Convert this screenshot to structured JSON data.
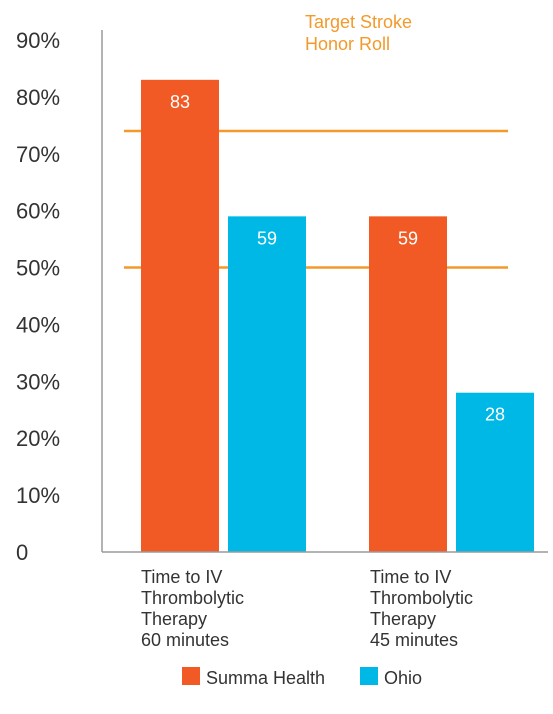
{
  "chart_data": {
    "type": "bar",
    "categories": [
      [
        "Time to IV",
        "Thrombolytic",
        "Therapy",
        "60 minutes"
      ],
      [
        "Time to IV",
        "Thrombolytic",
        "Therapy",
        "45 minutes"
      ]
    ],
    "series": [
      {
        "name": "Summa Health",
        "values": [
          83,
          59
        ],
        "color": "#f15a24"
      },
      {
        "name": "Ohio",
        "values": [
          59,
          28
        ],
        "color": "#00b8e6"
      }
    ],
    "ylim": [
      0,
      90
    ],
    "y_ticks": [
      {
        "value": 0,
        "label": "0"
      },
      {
        "value": 10,
        "label": "10%"
      },
      {
        "value": 20,
        "label": "20%"
      },
      {
        "value": 30,
        "label": "30%"
      },
      {
        "value": 40,
        "label": "40%"
      },
      {
        "value": 50,
        "label": "50%"
      },
      {
        "value": 60,
        "label": "60%"
      },
      {
        "value": 70,
        "label": "70%"
      },
      {
        "value": 80,
        "label": "80%"
      },
      {
        "value": 90,
        "label": "90%"
      }
    ],
    "reference_lines": [
      74,
      50
    ],
    "reference_color": "#f29a2b",
    "annotation": [
      "Target Stroke",
      "Honor Roll"
    ],
    "grid": false,
    "legend_position": "bottom"
  }
}
